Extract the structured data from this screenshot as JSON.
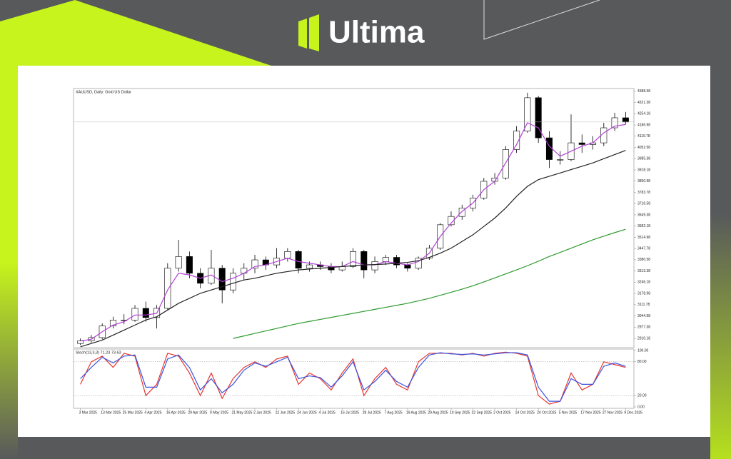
{
  "header": {
    "logo_text": "Ultima"
  },
  "chart_data": [
    {
      "type": "candlestick",
      "title": "XAUUSD, Daily: Gold US Dollar",
      "categories": [
        "3 Mar 2025",
        null,
        "13 Mar 2025",
        null,
        "25 Mar 2025",
        null,
        "4 Apr 2025",
        null,
        "16 Apr 2025",
        null,
        "29 Apr 2025",
        null,
        "9 May 2025",
        null,
        "21 May 2025",
        null,
        "2 Jun 2025",
        null,
        "12 Jun 2025",
        null,
        "24 Jun 2025",
        null,
        "4 Jul 2025",
        null,
        "16 Jul 2025",
        null,
        "28 Jul 2025",
        null,
        "7 Aug 2025",
        null,
        "19 Aug 2025",
        null,
        "29 Aug 2025",
        null,
        "10 Sep 2025",
        null,
        "22 Sep 2025",
        null,
        "2 Oct 2025",
        null,
        "14 Oct 2025",
        null,
        "24 Oct 2025",
        null,
        "5 Nov 2025",
        null,
        "17 Nov 2025",
        null,
        "27 Nov 2025",
        null,
        "9 Dec 2025"
      ],
      "ohlc": [
        [
          2880,
          2910,
          2870,
          2895
        ],
        [
          2895,
          2930,
          2885,
          2915
        ],
        [
          2915,
          3000,
          2905,
          2985
        ],
        [
          2985,
          3040,
          2970,
          3020
        ],
        [
          3020,
          3055,
          2995,
          3020
        ],
        [
          3020,
          3110,
          3010,
          3090
        ],
        [
          3090,
          3130,
          3010,
          3035
        ],
        [
          3035,
          3110,
          2970,
          3090
        ],
        [
          3090,
          3360,
          3080,
          3330
        ],
        [
          3330,
          3500,
          3310,
          3400
        ],
        [
          3400,
          3430,
          3270,
          3300
        ],
        [
          3300,
          3330,
          3210,
          3240
        ],
        [
          3240,
          3440,
          3230,
          3330
        ],
        [
          3330,
          3350,
          3120,
          3200
        ],
        [
          3200,
          3330,
          3180,
          3300
        ],
        [
          3300,
          3360,
          3260,
          3330
        ],
        [
          3330,
          3410,
          3300,
          3380
        ],
        [
          3380,
          3400,
          3320,
          3350
        ],
        [
          3350,
          3450,
          3330,
          3390
        ],
        [
          3390,
          3450,
          3370,
          3430
        ],
        [
          3430,
          3440,
          3300,
          3330
        ],
        [
          3330,
          3370,
          3310,
          3350
        ],
        [
          3350,
          3370,
          3320,
          3340
        ],
        [
          3340,
          3360,
          3300,
          3320
        ],
        [
          3320,
          3370,
          3310,
          3340
        ],
        [
          3340,
          3450,
          3330,
          3430
        ],
        [
          3430,
          3440,
          3270,
          3320
        ],
        [
          3320,
          3400,
          3300,
          3370
        ],
        [
          3370,
          3410,
          3350,
          3395
        ],
        [
          3395,
          3410,
          3330,
          3350
        ],
        [
          3350,
          3360,
          3310,
          3330
        ],
        [
          3330,
          3400,
          3320,
          3390
        ],
        [
          3390,
          3470,
          3380,
          3450
        ],
        [
          3450,
          3600,
          3440,
          3590
        ],
        [
          3590,
          3670,
          3580,
          3640
        ],
        [
          3640,
          3710,
          3620,
          3690
        ],
        [
          3690,
          3770,
          3670,
          3750
        ],
        [
          3750,
          3870,
          3740,
          3850
        ],
        [
          3850,
          3900,
          3830,
          3870
        ],
        [
          3870,
          4060,
          3860,
          4040
        ],
        [
          4040,
          4180,
          4020,
          4150
        ],
        [
          4150,
          4380,
          4140,
          4350
        ],
        [
          4350,
          4360,
          4080,
          4110
        ],
        [
          4110,
          4150,
          3930,
          3980
        ],
        [
          3980,
          4030,
          3950,
          3980
        ],
        [
          3980,
          4250,
          3970,
          4080
        ],
        [
          4080,
          4130,
          4020,
          4070
        ],
        [
          4070,
          4120,
          4040,
          4080
        ],
        [
          4080,
          4200,
          4060,
          4170
        ],
        [
          4170,
          4260,
          4150,
          4230
        ],
        [
          4230,
          4265,
          4190,
          4205
        ]
      ],
      "series": [
        {
          "color": "#b23fd6",
          "values": [
            2895,
            2905,
            2950,
            2990,
            3010,
            3050,
            3050,
            3060,
            3200,
            3300,
            3290,
            3270,
            3290,
            3250,
            3270,
            3300,
            3340,
            3350,
            3370,
            3390,
            3370,
            3360,
            3350,
            3340,
            3340,
            3370,
            3350,
            3350,
            3370,
            3360,
            3350,
            3370,
            3420,
            3520,
            3600,
            3670,
            3720,
            3800,
            3850,
            3960,
            4070,
            4200,
            4170,
            4060,
            4000,
            4030,
            4060,
            4080,
            4140,
            4180,
            4190
          ]
        },
        {
          "color": "#222222",
          "values": [
            2860,
            2880,
            2900,
            2930,
            2960,
            2990,
            3020,
            3040,
            3080,
            3120,
            3150,
            3180,
            3200,
            3220,
            3240,
            3260,
            3270,
            3285,
            3300,
            3310,
            3320,
            3325,
            3330,
            3335,
            3340,
            3345,
            3350,
            3352,
            3355,
            3360,
            3365,
            3375,
            3395,
            3420,
            3450,
            3490,
            3530,
            3580,
            3630,
            3690,
            3760,
            3820,
            3860,
            3880,
            3900,
            3920,
            3940,
            3960,
            3985,
            4010,
            4035
          ]
        },
        {
          "color": "#2e9a2e",
          "values": [
            null,
            null,
            null,
            null,
            null,
            null,
            null,
            null,
            null,
            null,
            null,
            null,
            null,
            null,
            2910,
            2925,
            2940,
            2955,
            2970,
            2985,
            3000,
            3012,
            3024,
            3036,
            3048,
            3060,
            3072,
            3084,
            3096,
            3108,
            3120,
            3135,
            3150,
            3168,
            3186,
            3205,
            3225,
            3248,
            3272,
            3296,
            3320,
            3345,
            3372,
            3400,
            3425,
            3450,
            3475,
            3500,
            3522,
            3543,
            3563
          ]
        }
      ],
      "ylim": [
        2855,
        4405
      ],
      "yticks": [
        4388.58,
        4321.38,
        4254.18,
        4186.98,
        4119.78,
        4052.58,
        3985.38,
        3918.18,
        3850.98,
        3783.78,
        3716.58,
        3649.38,
        3582.18,
        3514.98,
        3447.78,
        3380.58,
        3313.38,
        3246.18,
        3178.98,
        3111.78,
        3044.58,
        2977.38,
        2910.18
      ]
    },
    {
      "type": "line",
      "title": "Stoch(13,3,3) 71.23 73.63",
      "series": [
        {
          "color": "#e8352f",
          "values": [
            40,
            80,
            90,
            70,
            95,
            90,
            20,
            40,
            95,
            90,
            60,
            20,
            60,
            15,
            50,
            70,
            80,
            70,
            85,
            90,
            40,
            60,
            50,
            30,
            60,
            85,
            20,
            50,
            70,
            40,
            30,
            80,
            95,
            95,
            95,
            92,
            95,
            90,
            95,
            97,
            95,
            90,
            20,
            5,
            10,
            60,
            30,
            40,
            80,
            75,
            70
          ]
        },
        {
          "color": "#3a55e0",
          "values": [
            50,
            70,
            88,
            78,
            90,
            92,
            35,
            35,
            85,
            92,
            70,
            30,
            50,
            25,
            40,
            65,
            78,
            72,
            80,
            88,
            50,
            55,
            52,
            35,
            55,
            80,
            30,
            45,
            65,
            45,
            35,
            70,
            92,
            96,
            94,
            93,
            94,
            92,
            94,
            96,
            96,
            92,
            35,
            10,
            10,
            50,
            40,
            40,
            72,
            78,
            72
          ]
        }
      ],
      "ylim": [
        0,
        100
      ],
      "yticks": [
        {
          "value": 100,
          "label": "100.00"
        },
        {
          "value": 80,
          "label": "80.00"
        },
        {
          "value": 20,
          "label": "20.00"
        },
        {
          "value": 0,
          "label": "0.00"
        }
      ]
    }
  ]
}
